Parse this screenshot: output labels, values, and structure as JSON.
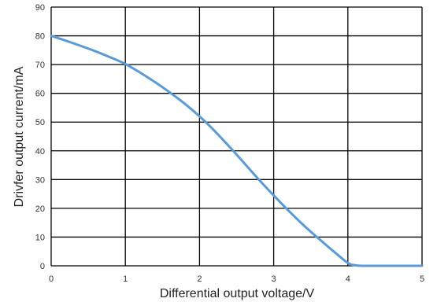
{
  "chart_data": {
    "type": "line",
    "title": "",
    "xlabel": "Differential output voltage/V",
    "ylabel": "Drivfer  output current/mA",
    "xlim": [
      0,
      5
    ],
    "ylim": [
      0,
      90
    ],
    "x_ticks": [
      "0",
      "1",
      "2",
      "3",
      "4",
      "5"
    ],
    "y_ticks": [
      "0",
      "10",
      "20",
      "30",
      "40",
      "50",
      "60",
      "70",
      "80",
      "90"
    ],
    "grid": true,
    "legend": "none",
    "line_color": "#5b9bd5",
    "grid_color": "#000000",
    "series": [
      {
        "x": [
          0,
          0.2,
          0.4,
          0.6,
          0.8,
          1.0,
          1.2,
          1.4,
          1.6,
          1.8,
          2.0,
          2.2,
          2.4,
          2.6,
          2.8,
          3.0,
          3.2,
          3.4,
          3.6,
          3.8,
          4.0,
          4.1,
          4.2,
          4.5,
          5.0
        ],
        "y": [
          80,
          78.3,
          76.5,
          74.6,
          72.5,
          70.2,
          67.2,
          63.9,
          60.3,
          56.4,
          52.0,
          47.0,
          41.5,
          35.8,
          30.0,
          24.5,
          19.2,
          14.2,
          9.6,
          5.2,
          1.0,
          0.2,
          0,
          0,
          0
        ]
      }
    ]
  }
}
